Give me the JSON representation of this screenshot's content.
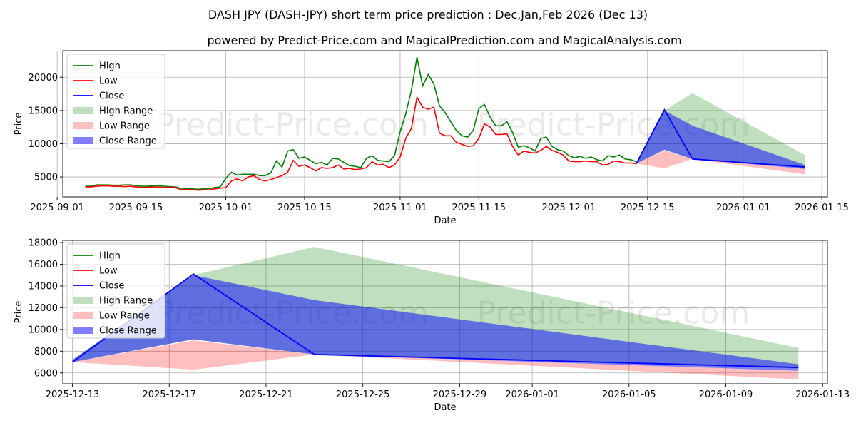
{
  "chart_data": [
    {
      "type": "line",
      "title": "DASH JPY (DASH-JPY) short term price prediction : Dec,Jan,Feb 2026 (Dec 13)",
      "subtitle": "powered by Predict-Price.com and MagicalPrediction.com and MagicalAnalysis.com",
      "watermark": "Predict-Price.com",
      "xlabel": "Date",
      "ylabel": "Price",
      "xlim": [
        "2025-09-02",
        "2026-01-16"
      ],
      "ylim": [
        2000,
        24000
      ],
      "x_ticks": [
        "2025-09-01",
        "2025-09-15",
        "2025-10-01",
        "2025-10-15",
        "2025-11-01",
        "2025-11-15",
        "2025-12-01",
        "2025-12-15",
        "2026-01-01",
        "2026-01-15"
      ],
      "y_ticks": [
        5000,
        10000,
        15000,
        20000
      ],
      "legend": "top-left",
      "grid": true,
      "history": {
        "start": "2025-09-06",
        "high": [
          3600,
          3600,
          3800,
          3800,
          3800,
          3750,
          3750,
          3800,
          3800,
          3700,
          3600,
          3600,
          3650,
          3700,
          3600,
          3550,
          3500,
          3300,
          3250,
          3200,
          3150,
          3200,
          3250,
          3400,
          3500,
          4800,
          5700,
          5300,
          5400,
          5400,
          5400,
          5200,
          5200,
          5600,
          7400,
          6500,
          8900,
          9100,
          7800,
          8000,
          7500,
          7000,
          7200,
          6800,
          7800,
          7700,
          7200,
          6700,
          6600,
          6400,
          7800,
          8200,
          7500,
          7400,
          7300,
          8200,
          11800,
          14500,
          18000,
          23000,
          18700,
          20400,
          19000,
          15700,
          14700,
          13300,
          12000,
          11200,
          11000,
          12000,
          15300,
          15900,
          14000,
          12700,
          12700,
          13300,
          11700,
          9500,
          9700,
          9400,
          8900,
          10800,
          11000,
          9600,
          9100,
          8900,
          8200,
          7900,
          8100,
          7800,
          8000,
          7600,
          7400,
          8200,
          8000,
          8300,
          7700,
          7600,
          7300
        ],
        "low": [
          3500,
          3500,
          3600,
          3650,
          3650,
          3600,
          3600,
          3550,
          3600,
          3500,
          3400,
          3450,
          3500,
          3500,
          3400,
          3450,
          3400,
          3100,
          3100,
          3100,
          3000,
          3050,
          3050,
          3200,
          3300,
          3400,
          4400,
          4700,
          4400,
          5000,
          5200,
          4600,
          4400,
          4600,
          4900,
          5200,
          5700,
          7500,
          6600,
          6800,
          6400,
          5900,
          6400,
          6300,
          6400,
          6800,
          6200,
          6300,
          6100,
          6200,
          6400,
          7300,
          6800,
          6900,
          6400,
          6800,
          8000,
          10800,
          12300,
          17000,
          15500,
          15200,
          15500,
          11600,
          11200,
          11200,
          10200,
          9900,
          9600,
          9700,
          10800,
          13000,
          12500,
          11400,
          11400,
          11500,
          9600,
          8300,
          8900,
          8700,
          8600,
          9000,
          9600,
          9000,
          8700,
          8300,
          7400,
          7300,
          7300,
          7400,
          7300,
          7300,
          6800,
          6900,
          7400,
          7300,
          7100,
          7100,
          7000
        ]
      },
      "forecast": {
        "dates": [
          "2025-12-13",
          "2025-12-18",
          "2025-12-23",
          "2026-01-12"
        ],
        "close": [
          7000,
          15100,
          7700,
          6500
        ],
        "high_range": {
          "upper": [
            7200,
            15000,
            17600,
            8300
          ],
          "lower": [
            7000,
            9100,
            7700,
            6400
          ]
        },
        "low_range": {
          "upper": [
            7000,
            9000,
            7700,
            6200
          ],
          "lower": [
            7000,
            6300,
            7700,
            5400
          ]
        },
        "close_range": {
          "upper": [
            7200,
            15000,
            12700,
            6800
          ],
          "lower": [
            7000,
            9100,
            7700,
            6200
          ]
        }
      },
      "series": [
        {
          "name": "High",
          "color": "#008000"
        },
        {
          "name": "Low",
          "color": "#ff0000"
        },
        {
          "name": "Close",
          "color": "#0000ff"
        },
        {
          "name": "High Range",
          "color": "#7fbf7f"
        },
        {
          "name": "Low Range",
          "color": "#ff7f7f"
        },
        {
          "name": "Close Range",
          "color": "#0000ff"
        }
      ]
    },
    {
      "type": "line",
      "title": "",
      "watermark": "Predict-Price.com",
      "xlabel": "Date",
      "ylabel": "Price",
      "xlim": [
        "2025-12-12.6",
        "2026-01-13.2"
      ],
      "ylim": [
        5000,
        18200
      ],
      "x_ticks": [
        "2025-12-13",
        "2025-12-17",
        "2025-12-21",
        "2025-12-25",
        "2025-12-29",
        "2026-01-01",
        "2026-01-05",
        "2026-01-09",
        "2026-01-13"
      ],
      "y_ticks": [
        6000,
        8000,
        10000,
        12000,
        14000,
        16000,
        18000
      ],
      "legend": "top-left",
      "grid": true,
      "series": [
        {
          "name": "High",
          "color": "#008000"
        },
        {
          "name": "Low",
          "color": "#ff0000"
        },
        {
          "name": "Close",
          "color": "#0000ff"
        },
        {
          "name": "High Range",
          "color": "#7fbf7f"
        },
        {
          "name": "Low Range",
          "color": "#ff7f7f"
        },
        {
          "name": "Close Range",
          "color": "#0000ff"
        }
      ]
    }
  ]
}
